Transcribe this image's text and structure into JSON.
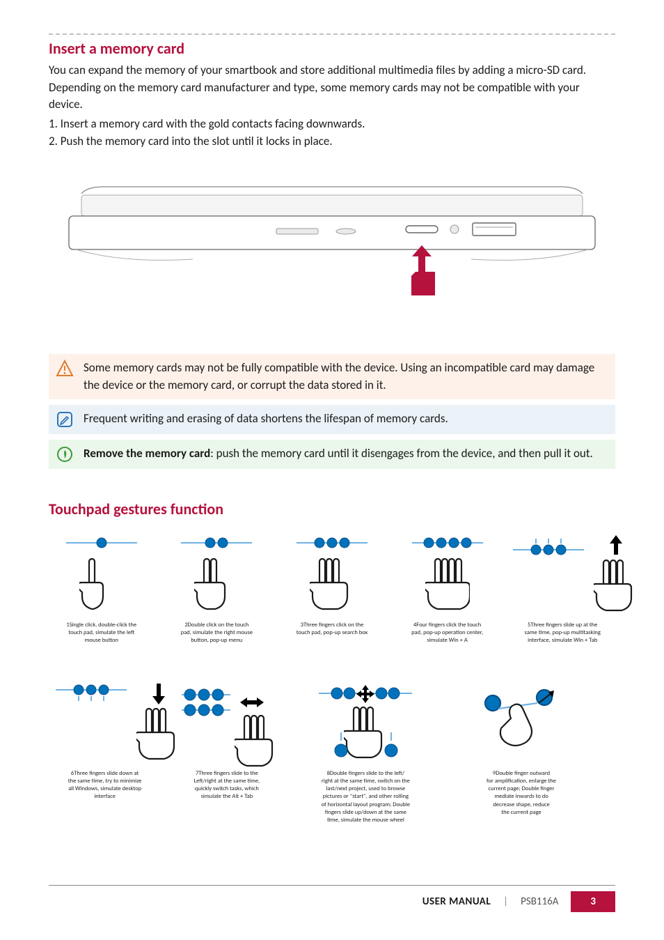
{
  "colors": {
    "accent": "#b5123e",
    "dot": "#0072bc",
    "line": "#6fb2e4",
    "hand_stroke": "#1a1a1a",
    "warn_bg": "#fdf1e9",
    "note_bg": "#eaf2f8",
    "tip_bg": "#eaf7ea",
    "warn_icon": "#e07b2e",
    "note_icon": "#2e74b5",
    "tip_icon": "#3a9a3a",
    "dash": "#bfbfbf"
  },
  "section1": {
    "title": "Insert a memory card",
    "para": "You can expand the memory of your smartbook and store additional multimedia files by adding a micro-SD card. Depending on the memory card manufacturer and type, some memory cards may not be compatible with your device.",
    "steps": [
      "1. Insert a memory card with the gold contacts facing downwards.",
      "2. Push the memory card into the slot until it locks in place."
    ]
  },
  "callouts": {
    "warn": "Some memory cards may not be fully compatible with the device. Using an incompatible card may damage the device or the memory card, or corrupt the data stored in it.",
    "note": "Frequent writing and erasing of data shortens the lifespan of memory cards.",
    "tip_bold": "Remove the memory card",
    "tip_rest": ": push the memory card until it disengages from the device, and then pull it out."
  },
  "section2": {
    "title": "Touchpad gestures function"
  },
  "gestures_row1": [
    {
      "id": "g1",
      "dots": 1,
      "variant": "one-tap",
      "caption": "1Single click, double-click the\ntouch pad, simulate the left\nmouse button"
    },
    {
      "id": "g2",
      "dots": 2,
      "variant": "tap",
      "caption": "2Double click on the touch\npad, simulate the right mouse\nbutton, pop-up menu"
    },
    {
      "id": "g3",
      "dots": 3,
      "variant": "tap",
      "caption": "3Three fingers click on the\ntouch pad, pop-up search box"
    },
    {
      "id": "g4",
      "dots": 4,
      "variant": "tap",
      "caption": "4Four fingers click the touch\npad, pop-up operation center,\nsimulate Win + A"
    },
    {
      "id": "g5",
      "dots": 3,
      "variant": "up",
      "caption": "5Three fingers slide up at the\nsame time, pop-up multitasking\ninterface, simulate Win + Tab"
    }
  ],
  "gestures_row2": [
    {
      "id": "g6",
      "dots": 3,
      "variant": "down",
      "caption": "6Three fingers slide down at\nthe same time, try to minimize\nall Windows, simulate desktop\ninterface"
    },
    {
      "id": "g7",
      "dots": 3,
      "variant": "lr",
      "caption": "7Three fingers slide to the\nLeft/right at the same time,\nquickly switch tasks, which\nsimulate the Alt + Tab"
    },
    {
      "id": "g8",
      "dots": 2,
      "variant": "scroll",
      "caption": "8Double fingers slide to the left/\nright at the same time, switch on the\nlast/next project, used to browse\npictures or \"start\", and other rolling\nof horizontal layout program; Double\nfingers slide up/down at the same\ntime, simulate the mouse wheel"
    },
    {
      "id": "g9",
      "dots": 2,
      "variant": "pinch",
      "caption": "9Double finger outward\nfor amplification, enlarge the\ncurrent page; Double finger\nmediate inwards to do\ndecrease shape, reduce\nthe current page"
    }
  ],
  "footer": {
    "um": "USER MANUAL",
    "model": "PSB116A",
    "page": "3"
  }
}
